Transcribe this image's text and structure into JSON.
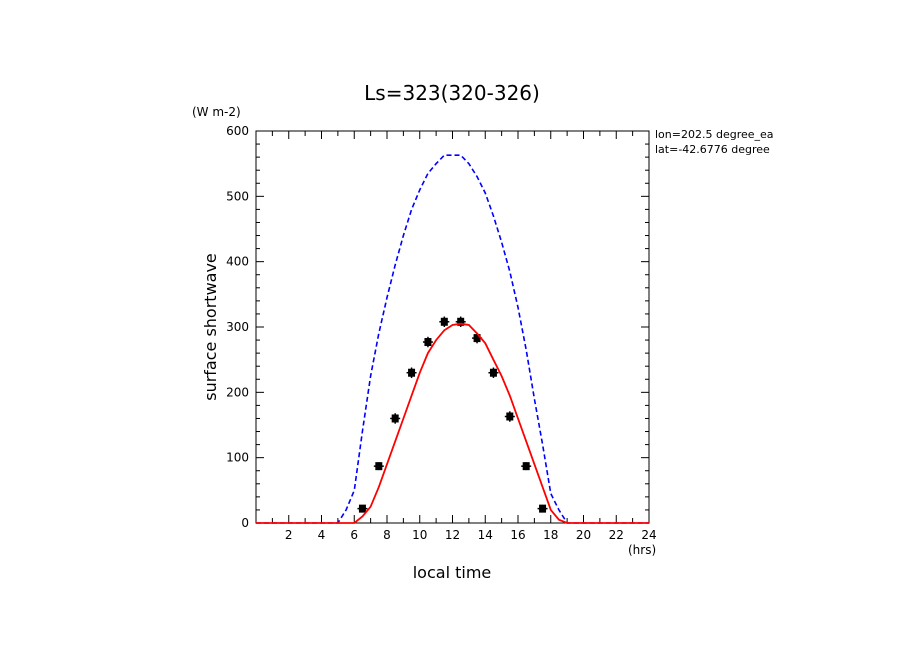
{
  "chart_data": {
    "type": "line",
    "title": "Ls=323(320-326)",
    "xlabel": "local time",
    "ylabel": "surface shortwave",
    "x_unit": "(hrs)",
    "y_unit": "(W m-2)",
    "annotations": [
      "lon=202.5 degree_ea",
      "lat=-42.6776 degree"
    ],
    "xlim": [
      0,
      24
    ],
    "ylim": [
      0,
      600
    ],
    "x_ticks": [
      2,
      4,
      6,
      8,
      10,
      12,
      14,
      16,
      18,
      20,
      22,
      24
    ],
    "y_ticks": [
      0,
      100,
      200,
      300,
      400,
      500,
      600
    ],
    "grid": false,
    "series": [
      {
        "style": "dashed",
        "color": "#0000ff",
        "x": [
          0,
          1,
          2,
          3,
          4,
          4.5,
          5,
          5.5,
          6,
          6.5,
          7,
          7.5,
          8,
          8.5,
          9,
          9.5,
          10,
          10.5,
          11,
          11.5,
          12,
          12.5,
          13,
          13.5,
          14,
          14.5,
          15,
          15.5,
          16,
          16.5,
          17,
          17.5,
          18,
          18.5,
          19,
          19.5,
          20,
          21,
          22,
          23,
          24
        ],
        "y": [
          0,
          0,
          0,
          0,
          0,
          0,
          0,
          20,
          50,
          140,
          225,
          290,
          345,
          395,
          440,
          480,
          510,
          535,
          550,
          563,
          563,
          563,
          550,
          530,
          505,
          470,
          430,
          385,
          330,
          265,
          190,
          120,
          45,
          20,
          0,
          0,
          0,
          0,
          0,
          0,
          0
        ]
      },
      {
        "style": "solid",
        "color": "#ff0000",
        "x": [
          0,
          1,
          2,
          3,
          4,
          5,
          5.5,
          6,
          6.5,
          7,
          7.5,
          8,
          8.5,
          9,
          9.5,
          10,
          10.5,
          11,
          11.5,
          12,
          12.5,
          13,
          13.5,
          14,
          14.5,
          15,
          15.5,
          16,
          16.5,
          17,
          17.5,
          18,
          18.5,
          19,
          20,
          21,
          22,
          23,
          24
        ],
        "y": [
          0,
          0,
          0,
          0,
          0,
          0,
          0,
          0,
          10,
          25,
          55,
          90,
          125,
          160,
          195,
          230,
          260,
          280,
          295,
          303,
          305,
          303,
          290,
          275,
          250,
          225,
          195,
          160,
          125,
          90,
          55,
          20,
          5,
          0,
          0,
          0,
          0,
          0,
          0
        ]
      },
      {
        "style": "markers",
        "color": "#000000",
        "x": [
          6.5,
          7.5,
          8.5,
          9.5,
          10.5,
          11.5,
          12.5,
          13.5,
          14.5,
          15.5,
          16.5,
          17.5
        ],
        "y": [
          22,
          87,
          160,
          230,
          277,
          308,
          308,
          283,
          230,
          163,
          87,
          22
        ],
        "err": [
          4,
          6,
          8,
          8,
          8,
          8,
          8,
          8,
          8,
          8,
          6,
          4
        ]
      }
    ]
  }
}
